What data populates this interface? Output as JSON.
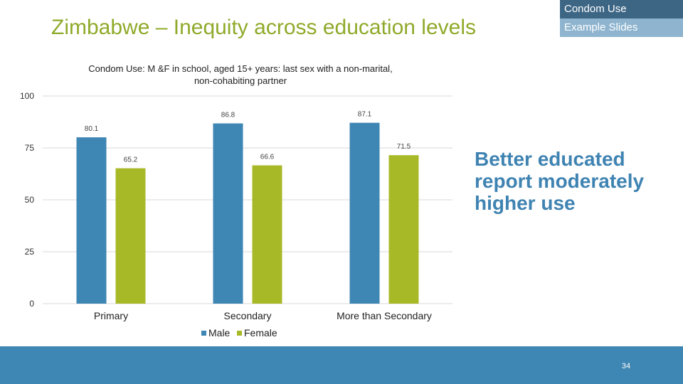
{
  "header": {
    "title": "Zimbabwe – Inequity across education levels",
    "tag_primary": "Condom Use",
    "tag_secondary": "Example Slides"
  },
  "callout": {
    "line1": "Better educated",
    "line2": "report moderately",
    "line3": "higher use"
  },
  "footer": {
    "page_number": "34"
  },
  "colors": {
    "male": "#3e86b3",
    "female": "#a8b928",
    "title": "#8faa2a",
    "footer": "#3e86b3"
  },
  "chart_data": {
    "type": "bar",
    "title_line1": "Condom Use: M &F in school,  aged 15+ years: last sex with a non-marital,",
    "title_line2": "non-cohabiting partner",
    "categories": [
      "Primary",
      "Secondary",
      "More than Secondary"
    ],
    "series": [
      {
        "name": "Male",
        "values": [
          80.1,
          86.8,
          87.1
        ]
      },
      {
        "name": "Female",
        "values": [
          65.2,
          66.6,
          71.5
        ]
      }
    ],
    "value_labels": [
      [
        "80.1",
        "86.8",
        "87.1"
      ],
      [
        "65.2",
        "66.6",
        "71.5"
      ]
    ],
    "yticks": [
      0,
      25,
      50,
      75,
      100
    ],
    "ylim": [
      0,
      100
    ],
    "grid": true,
    "legend_position": "bottom"
  }
}
